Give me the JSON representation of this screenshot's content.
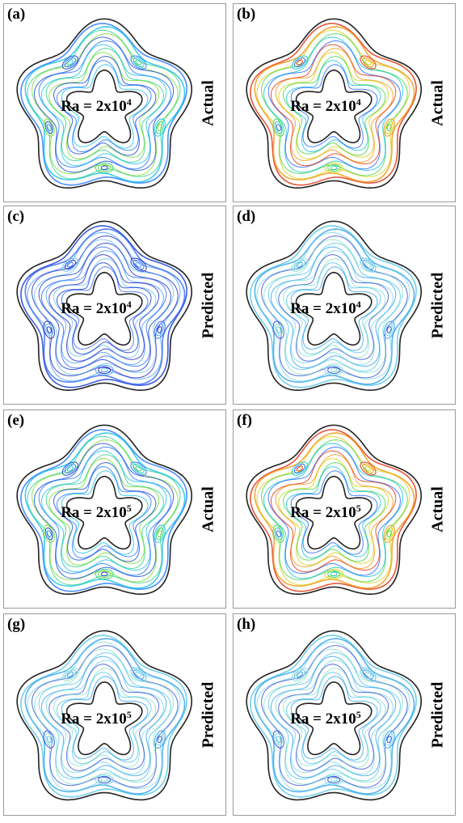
{
  "panels": [
    {
      "id": "a",
      "label": "(a)",
      "ra_base": "Ra = 2x10",
      "ra_exp": "4",
      "side": "Actual",
      "palette": "green-blue"
    },
    {
      "id": "b",
      "label": "(b)",
      "ra_base": "Ra = 2x10",
      "ra_exp": "4",
      "side": "Actual",
      "palette": "rainbow"
    },
    {
      "id": "c",
      "label": "(c)",
      "ra_base": "Ra = 2x10",
      "ra_exp": "4",
      "side": "Predicted",
      "palette": "blue"
    },
    {
      "id": "d",
      "label": "(d)",
      "ra_base": "Ra = 2x10",
      "ra_exp": "4",
      "side": "Predicted",
      "palette": "cyan"
    },
    {
      "id": "e",
      "label": "(e)",
      "ra_base": "Ra = 2x10",
      "ra_exp": "5",
      "side": "Actual",
      "palette": "green-blue"
    },
    {
      "id": "f",
      "label": "(f)",
      "ra_base": "Ra = 2x10",
      "ra_exp": "5",
      "side": "Actual",
      "palette": "rainbow"
    },
    {
      "id": "g",
      "label": "(g)",
      "ra_base": "Ra = 2x10",
      "ra_exp": "5",
      "side": "Predicted",
      "palette": "cyan"
    },
    {
      "id": "h",
      "label": "(h)",
      "ra_base": "Ra = 2x10",
      "ra_exp": "5",
      "side": "Predicted",
      "palette": "cyan"
    }
  ],
  "palettes": {
    "green-blue": [
      "#2a7bff",
      "#22c4e6",
      "#33d38c",
      "#7ddc3a",
      "#1d4fd6"
    ],
    "rainbow": [
      "#e23a1a",
      "#f29a16",
      "#d8d21c",
      "#4cd64a",
      "#1fc6d8",
      "#2a6cff"
    ],
    "blue": [
      "#1b3fd6",
      "#3a6cf2",
      "#4ea0ff",
      "#2c2cc9",
      "#6fc6ee"
    ],
    "cyan": [
      "#5bc9e6",
      "#3aa6ee",
      "#7fd8e8",
      "#3b56d9",
      "#8ee0d0"
    ]
  }
}
